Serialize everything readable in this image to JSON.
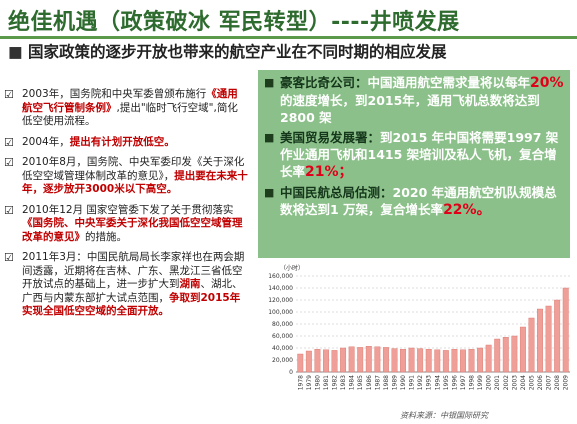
{
  "header": {
    "title": "绝佳机遇（政策破冰  军民转型）----井喷发展"
  },
  "subtitle": "国家政策的逐步开放也带来的航空产业在不同时期的相应发展",
  "policy_items": [
    {
      "segments": [
        {
          "text": "2003年，国务院和中央军委曾颁布施行"
        },
        {
          "text": "《通用航空飞行管制条例》",
          "emphasis": true
        },
        {
          "text": ",提出\"临时飞行空域\",简化低空使用流程。"
        }
      ]
    },
    {
      "segments": [
        {
          "text": "2004年，"
        },
        {
          "text": "提出有计划开放低空。",
          "emphasis": true
        }
      ]
    },
    {
      "segments": [
        {
          "text": "2010年8月，国务院、中央军委印发《关于深化低空空域管理体制改革的意见》，"
        },
        {
          "text": "提出要在未来十年，逐步放开3000米以下高空。",
          "emphasis": true
        }
      ]
    },
    {
      "segments": [
        {
          "text": "2010年12月  国家空管委下发了关于贯彻落实"
        },
        {
          "text": "《国务院、中央军委关于深化我国低空空域管理改革的意见》",
          "emphasis": true
        },
        {
          "text": "的措施。"
        }
      ]
    },
    {
      "segments": [
        {
          "text": "2011年3月：中国民航局局长李家祥也在两会期间透露，近期将在吉林、广东、黑龙江三省低空开放试点的基础上，进一步扩大到"
        },
        {
          "text": "湖南",
          "emphasis": true
        },
        {
          "text": "、湖北、广西与内蒙东部扩大试点范围，"
        },
        {
          "text": "争取到2015年实现全国低空空域的全面开放。",
          "emphasis": true
        }
      ]
    }
  ],
  "forecasts": [
    {
      "source": "豪客比奇公司：",
      "segments": [
        {
          "text": "中国通用航空需求量将以每年"
        },
        {
          "text": "20%",
          "emphasis": true
        },
        {
          "text": "的速度增长，到2015年，通用飞机总数将达到2800 架"
        }
      ]
    },
    {
      "source": "美国贸易发展署：",
      "segments": [
        {
          "text": "到2015 年中国将需要1997 架作业通用飞机和1415 架培训及私人飞机，复合增长率"
        },
        {
          "text": "21%；",
          "emphasis": true
        }
      ]
    },
    {
      "source": "中国民航总局估测：",
      "segments": [
        {
          "text": "2020 年通用航空机队规模总数将达到1 万架，复合增长率"
        },
        {
          "text": "22%。",
          "emphasis": true
        }
      ]
    }
  ],
  "chart_data": {
    "type": "bar",
    "unit_label": "（小时）",
    "categories": [
      "1978",
      "1979",
      "1980",
      "1981",
      "1982",
      "1983",
      "1984",
      "1985",
      "1986",
      "1987",
      "1988",
      "1989",
      "1990",
      "1991",
      "1992",
      "1993",
      "1994",
      "1995",
      "1996",
      "1997",
      "1998",
      "1999",
      "2000",
      "2001",
      "2002",
      "2003",
      "2004",
      "2005",
      "2006",
      "2007",
      "2008",
      "2009"
    ],
    "values": [
      30000,
      35000,
      38000,
      37000,
      36000,
      40000,
      42000,
      41000,
      43000,
      42000,
      41000,
      39000,
      38000,
      40000,
      39000,
      38000,
      37000,
      36000,
      38000,
      37000,
      38000,
      40000,
      45000,
      55000,
      58000,
      60000,
      75000,
      90000,
      105000,
      110000,
      120000,
      140000
    ],
    "color": "#ef9f97",
    "ylim": [
      0,
      160000
    ],
    "yticks": [
      0,
      {
        "value": 20000,
        "label": "20,000"
      },
      {
        "value": 40000,
        "label": "40,000"
      },
      {
        "value": 60000,
        "label": "60,000"
      },
      {
        "value": 80000,
        "label": "80,000"
      },
      {
        "value": 100000,
        "label": "100,000"
      },
      {
        "value": 120000,
        "label": "120,000"
      },
      {
        "value": 140000,
        "label": "140,000"
      },
      {
        "value": 160000,
        "label": "160,000"
      }
    ],
    "grid": true
  },
  "source_note": "资料来源：中银国际研究"
}
